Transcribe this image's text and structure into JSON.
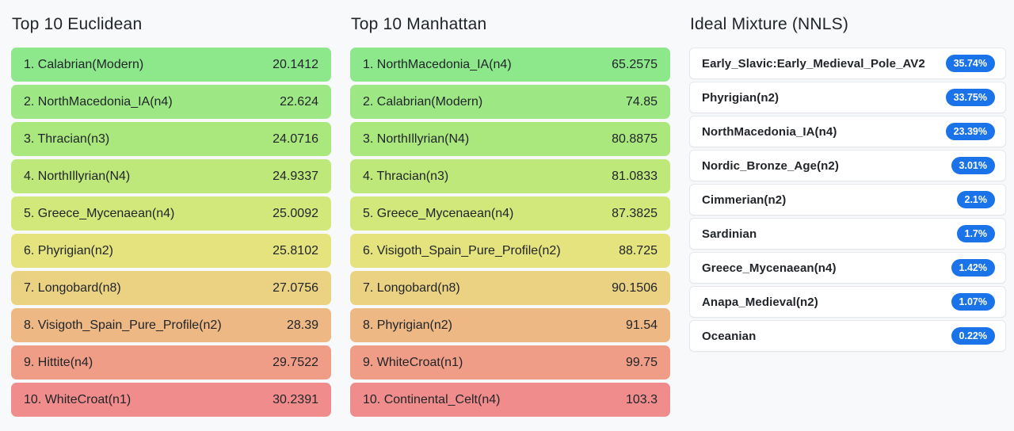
{
  "colors": {
    "background": "#f8f9fa",
    "title_text": "#212529",
    "row_text": "#212529",
    "card_background": "#ffffff",
    "card_border": "#e5e8ec",
    "badge_background": "#1a73e8",
    "badge_text": "#ffffff"
  },
  "columns": [
    {
      "title": "Top 10 Euclidean",
      "type": "distance",
      "rows": [
        {
          "rank": 1,
          "label": "1. Calabrian(Modern)",
          "value": "20.1412",
          "color": "#8de88c"
        },
        {
          "rank": 2,
          "label": "2. NorthMacedonia_IA(n4)",
          "value": "22.624",
          "color": "#9de884"
        },
        {
          "rank": 3,
          "label": "3. Thracian(n3)",
          "value": "24.0716",
          "color": "#aae87e"
        },
        {
          "rank": 4,
          "label": "4. NorthIllyrian(N4)",
          "value": "24.9337",
          "color": "#bfe87b"
        },
        {
          "rank": 5,
          "label": "5. Greece_Mycenaean(n4)",
          "value": "25.0092",
          "color": "#d2e87b"
        },
        {
          "rank": 6,
          "label": "6. Phyrigian(n2)",
          "value": "25.8102",
          "color": "#e4e37d"
        },
        {
          "rank": 7,
          "label": "7. Longobard(n8)",
          "value": "27.0756",
          "color": "#ebd283"
        },
        {
          "rank": 8,
          "label": "8. Visigoth_Spain_Pure_Profile(n2)",
          "value": "28.39",
          "color": "#edb884"
        },
        {
          "rank": 9,
          "label": "9. Hittite(n4)",
          "value": "29.7522",
          "color": "#f09d87"
        },
        {
          "rank": 10,
          "label": "10. WhiteCroat(n1)",
          "value": "30.2391",
          "color": "#f18c8c"
        }
      ]
    },
    {
      "title": "Top 10 Manhattan",
      "type": "distance",
      "rows": [
        {
          "rank": 1,
          "label": "1. NorthMacedonia_IA(n4)",
          "value": "65.2575",
          "color": "#8de88c"
        },
        {
          "rank": 2,
          "label": "2. Calabrian(Modern)",
          "value": "74.85",
          "color": "#9de884"
        },
        {
          "rank": 3,
          "label": "3. NorthIllyrian(N4)",
          "value": "80.8875",
          "color": "#aae87e"
        },
        {
          "rank": 4,
          "label": "4. Thracian(n3)",
          "value": "81.0833",
          "color": "#bfe87b"
        },
        {
          "rank": 5,
          "label": "5. Greece_Mycenaean(n4)",
          "value": "87.3825",
          "color": "#d2e87b"
        },
        {
          "rank": 6,
          "label": "6. Visigoth_Spain_Pure_Profile(n2)",
          "value": "88.725",
          "color": "#e4e37d"
        },
        {
          "rank": 7,
          "label": "7. Longobard(n8)",
          "value": "90.1506",
          "color": "#ebd283"
        },
        {
          "rank": 8,
          "label": "8. Phyrigian(n2)",
          "value": "91.54",
          "color": "#edb884"
        },
        {
          "rank": 9,
          "label": "9. WhiteCroat(n1)",
          "value": "99.75",
          "color": "#f09d87"
        },
        {
          "rank": 10,
          "label": "10. Continental_Celt(n4)",
          "value": "103.3",
          "color": "#f18c8c"
        }
      ]
    },
    {
      "title": "Ideal Mixture (NNLS)",
      "type": "mixture",
      "rows": [
        {
          "label": "Early_Slavic:Early_Medieval_Pole_AV2",
          "badge": "35.74%"
        },
        {
          "label": "Phyrigian(n2)",
          "badge": "33.75%"
        },
        {
          "label": "NorthMacedonia_IA(n4)",
          "badge": "23.39%"
        },
        {
          "label": "Nordic_Bronze_Age(n2)",
          "badge": "3.01%"
        },
        {
          "label": "Cimmerian(n2)",
          "badge": "2.1%"
        },
        {
          "label": "Sardinian",
          "badge": "1.7%"
        },
        {
          "label": "Greece_Mycenaean(n4)",
          "badge": "1.42%"
        },
        {
          "label": "Anapa_Medieval(n2)",
          "badge": "1.07%"
        },
        {
          "label": "Oceanian",
          "badge": "0.22%"
        }
      ]
    }
  ]
}
